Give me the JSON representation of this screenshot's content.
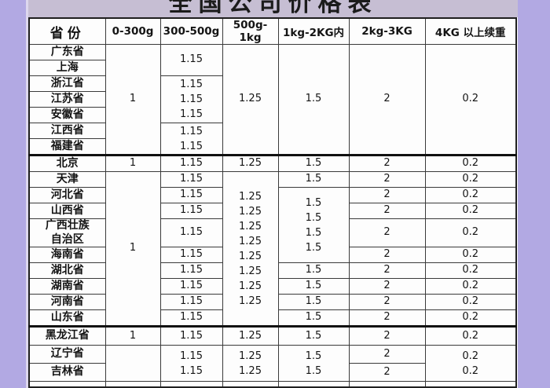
{
  "page": {
    "title": "全国公司价格表",
    "background_color": "#b2a9e3",
    "title_bar_color": "#c6bed3",
    "table_background": "#fdfdfd",
    "border_color": "#3a3a3a"
  },
  "table": {
    "headers": [
      "省份",
      "0-300g",
      "300-500g",
      "500g-1kg",
      "1kg-2KG内",
      "2kg-3KG",
      "4KG 以上续重"
    ],
    "rows": [
      {
        "name": "广东省",
        "cells": [
          {
            "col": 1,
            "rs": 7,
            "v": "1"
          },
          {
            "col": 2,
            "rs": 2,
            "v": "1.15"
          },
          {
            "col": 3,
            "rs": 7,
            "v": "1.25"
          },
          {
            "col": 4,
            "rs": 7,
            "v": "1.5"
          },
          {
            "col": 5,
            "rs": 7,
            "v": "2"
          },
          {
            "col": 6,
            "rs": 7,
            "v": "0.2"
          }
        ]
      },
      {
        "name": "上海",
        "cells": []
      },
      {
        "name": "浙江省",
        "cells": [
          {
            "col": 2,
            "rs": 3,
            "lines": [
              "1.15",
              "1.15",
              "1.15"
            ]
          }
        ]
      },
      {
        "name": "江苏省",
        "cells": []
      },
      {
        "name": "安徽省",
        "cells": []
      },
      {
        "name": "江西省",
        "cells": [
          {
            "col": 2,
            "rs": 2,
            "lines": [
              "1.15",
              "1.15"
            ]
          }
        ]
      },
      {
        "name": "福建省",
        "cells": []
      },
      {
        "name": "北京",
        "cells": [
          {
            "col": 1,
            "v": "1"
          },
          {
            "col": 2,
            "v": "1.15"
          },
          {
            "col": 3,
            "v": "1.25"
          },
          {
            "col": 4,
            "v": "1.5"
          },
          {
            "col": 5,
            "v": "2"
          },
          {
            "col": 6,
            "v": "0.2"
          }
        ]
      },
      {
        "name": "天津",
        "cells": [
          {
            "col": 1,
            "rs": 9,
            "v": "1"
          },
          {
            "col": 2,
            "v": "1.15"
          },
          {
            "col": 3,
            "rs": 9,
            "lines": [
              "1.25",
              "1.25",
              "1.25",
              "1.25",
              "1.25",
              "1.25",
              "1.25",
              "1.25"
            ]
          },
          {
            "col": 4,
            "v": "1.5"
          },
          {
            "col": 5,
            "v": "2"
          },
          {
            "col": 6,
            "v": "0.2"
          }
        ]
      },
      {
        "name": "河北省",
        "cells": [
          {
            "col": 2,
            "v": "1.15"
          },
          {
            "col": 4,
            "rs": 4,
            "lines": [
              "1.5",
              "1.5",
              "1.5",
              "1.5"
            ]
          },
          {
            "col": 5,
            "v": "2"
          },
          {
            "col": 6,
            "v": "0.2"
          }
        ]
      },
      {
        "name": "山西省",
        "cells": [
          {
            "col": 2,
            "v": "1.15"
          },
          {
            "col": 5,
            "v": "2"
          },
          {
            "col": 6,
            "v": "0.2"
          }
        ]
      },
      {
        "name": "广西壮族\n自治区",
        "cells": [
          {
            "col": 2,
            "v": "1.15"
          },
          {
            "col": 5,
            "v": "2"
          },
          {
            "col": 6,
            "v": "0.2"
          }
        ]
      },
      {
        "name": "海南省",
        "cells": [
          {
            "col": 2,
            "v": "1.15"
          },
          {
            "col": 5,
            "v": "2"
          },
          {
            "col": 6,
            "v": "0.2"
          }
        ]
      },
      {
        "name": "湖北省",
        "cells": [
          {
            "col": 2,
            "v": "1.15"
          },
          {
            "col": 4,
            "v": "1.5"
          },
          {
            "col": 5,
            "v": "2"
          },
          {
            "col": 6,
            "v": "0.2"
          }
        ]
      },
      {
        "name": "湖南省",
        "cells": [
          {
            "col": 2,
            "v": "1.15"
          },
          {
            "col": 4,
            "v": "1.5"
          },
          {
            "col": 5,
            "v": "2"
          },
          {
            "col": 6,
            "v": "0.2"
          }
        ]
      },
      {
        "name": "河南省",
        "cells": [
          {
            "col": 2,
            "v": "1.15"
          },
          {
            "col": 4,
            "v": "1.5"
          },
          {
            "col": 5,
            "v": "2"
          },
          {
            "col": 6,
            "v": "0.2"
          }
        ]
      },
      {
        "name": "山东省",
        "cells": [
          {
            "col": 2,
            "v": "1.15"
          },
          {
            "col": 4,
            "v": "1.5"
          },
          {
            "col": 5,
            "v": "2"
          },
          {
            "col": 6,
            "v": "0.2"
          }
        ]
      },
      {
        "name": "黑龙江省",
        "cells": [
          {
            "col": 1,
            "v": "1"
          },
          {
            "col": 2,
            "v": "1.15"
          },
          {
            "col": 3,
            "v": "1.25"
          },
          {
            "col": 4,
            "v": "1.5"
          },
          {
            "col": 5,
            "v": "2"
          },
          {
            "col": 6,
            "v": "0.2"
          }
        ]
      },
      {
        "name": "辽宁省",
        "cells": [
          {
            "col": 1,
            "rs": 2,
            "v": ""
          },
          {
            "col": 2,
            "rs": 2,
            "lines": [
              "1.15",
              "1.15"
            ]
          },
          {
            "col": 3,
            "rs": 2,
            "lines": [
              "1.25",
              "1.25"
            ]
          },
          {
            "col": 4,
            "rs": 2,
            "lines": [
              "1.5",
              "1.5"
            ]
          },
          {
            "col": 5,
            "v": "2"
          },
          {
            "col": 6,
            "rs": 2,
            "lines": [
              "0.2",
              "0.2"
            ]
          }
        ]
      },
      {
        "name": "吉林省",
        "cells": [
          {
            "col": 5,
            "v": "2"
          }
        ]
      }
    ]
  }
}
